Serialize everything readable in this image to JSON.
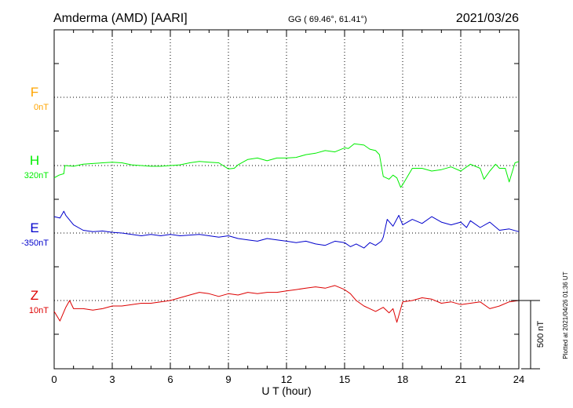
{
  "header": {
    "station": "Amderma (AMD)  [AARI]",
    "coords": "GG ( 69.46°,  61.41°)",
    "date": "2021/03/26"
  },
  "footer": {
    "plotted": "Plotted at 2021/04/26 01:36 UT"
  },
  "chart_data": {
    "type": "line",
    "xlabel": "U T (hour)",
    "xlim": [
      0,
      24
    ],
    "xticks": [
      "0",
      "3",
      "6",
      "9",
      "12",
      "15",
      "18",
      "21",
      "24"
    ],
    "scale_bar": {
      "label": "500 nT",
      "value_nT": 500
    },
    "grid": true,
    "series": [
      {
        "name": "F",
        "baseline_label": "0nT",
        "color": "#ffa500",
        "x": [],
        "y": []
      },
      {
        "name": "H",
        "baseline_label": "320nT",
        "color": "#00ee00",
        "x": [
          0,
          0.25,
          0.5,
          0.55,
          1,
          1.5,
          2,
          2.5,
          3,
          3.5,
          4,
          4.5,
          5,
          5.5,
          6,
          6.5,
          7,
          7.5,
          8,
          8.5,
          9,
          9.3,
          9.5,
          10,
          10.5,
          11,
          11.5,
          12,
          12.5,
          13,
          13.5,
          14,
          14.5,
          15,
          15.2,
          15.5,
          16,
          16.3,
          16.6,
          16.8,
          17,
          17.3,
          17.5,
          17.7,
          17.9,
          18,
          18.5,
          19,
          19.5,
          20,
          20.5,
          21,
          21.5,
          22,
          22.2,
          22.5,
          22.8,
          23,
          23.3,
          23.5,
          23.8,
          24
        ],
        "y": [
          -90,
          -70,
          -60,
          0,
          -5,
          10,
          15,
          20,
          25,
          20,
          5,
          0,
          -5,
          -5,
          0,
          5,
          20,
          30,
          25,
          20,
          -25,
          -20,
          5,
          45,
          55,
          35,
          55,
          55,
          60,
          80,
          90,
          110,
          100,
          130,
          125,
          160,
          150,
          120,
          110,
          80,
          -80,
          -100,
          -70,
          -90,
          -160,
          -140,
          -20,
          -20,
          -40,
          -30,
          -10,
          -40,
          10,
          -20,
          -100,
          -40,
          10,
          -20,
          -20,
          -120,
          20,
          30
        ]
      },
      {
        "name": "E",
        "baseline_label": "-350nT",
        "color": "#0000cc",
        "x": [
          0,
          0.3,
          0.5,
          0.6,
          1,
          1.5,
          2,
          2.5,
          3,
          3.5,
          4,
          4.5,
          5,
          5.5,
          6,
          6.5,
          7,
          7.5,
          8,
          8.5,
          9,
          9.5,
          10,
          10.5,
          11,
          11.5,
          12,
          12.5,
          13,
          13.5,
          14,
          14.5,
          15,
          15.3,
          15.6,
          16,
          16.3,
          16.6,
          16.9,
          17,
          17.2,
          17.5,
          17.8,
          18,
          18.5,
          19,
          19.5,
          20,
          20.5,
          21,
          21.3,
          21.5,
          22,
          22.5,
          23,
          23.5,
          24
        ],
        "y": [
          120,
          110,
          160,
          130,
          60,
          20,
          10,
          15,
          5,
          0,
          -10,
          -20,
          -10,
          -20,
          -10,
          -20,
          -15,
          -10,
          -20,
          -30,
          -20,
          -40,
          -50,
          -60,
          -40,
          -50,
          -60,
          -70,
          -60,
          -80,
          -90,
          -60,
          -70,
          -100,
          -80,
          -110,
          -70,
          -90,
          -60,
          -30,
          100,
          50,
          130,
          60,
          100,
          70,
          120,
          80,
          60,
          80,
          40,
          90,
          40,
          80,
          20,
          30,
          10
        ]
      },
      {
        "name": "Z",
        "baseline_label": "10nT",
        "color": "#dd0000",
        "x": [
          0,
          0.3,
          0.6,
          0.8,
          1,
          1.5,
          2,
          2.5,
          3,
          3.5,
          4,
          4.5,
          5,
          5.5,
          6,
          6.5,
          7,
          7.5,
          8,
          8.5,
          9,
          9.5,
          10,
          10.5,
          11,
          11.5,
          12,
          12.5,
          13,
          13.5,
          14,
          14.5,
          15,
          15.3,
          15.6,
          16,
          16.3,
          16.6,
          17,
          17.3,
          17.5,
          17.7,
          18,
          18.5,
          19,
          19.5,
          20,
          20.5,
          21,
          21.5,
          22,
          22.5,
          23,
          23.5,
          24
        ],
        "y": [
          -80,
          -150,
          -50,
          0,
          -60,
          -60,
          -70,
          -60,
          -40,
          -40,
          -30,
          -20,
          -20,
          -10,
          0,
          20,
          40,
          60,
          50,
          30,
          50,
          40,
          60,
          50,
          60,
          60,
          70,
          80,
          90,
          100,
          90,
          110,
          80,
          50,
          0,
          -40,
          -60,
          -80,
          -50,
          -90,
          -60,
          -160,
          -10,
          0,
          20,
          10,
          -20,
          -10,
          -30,
          -20,
          -10,
          -60,
          -40,
          -10,
          0
        ]
      }
    ]
  }
}
